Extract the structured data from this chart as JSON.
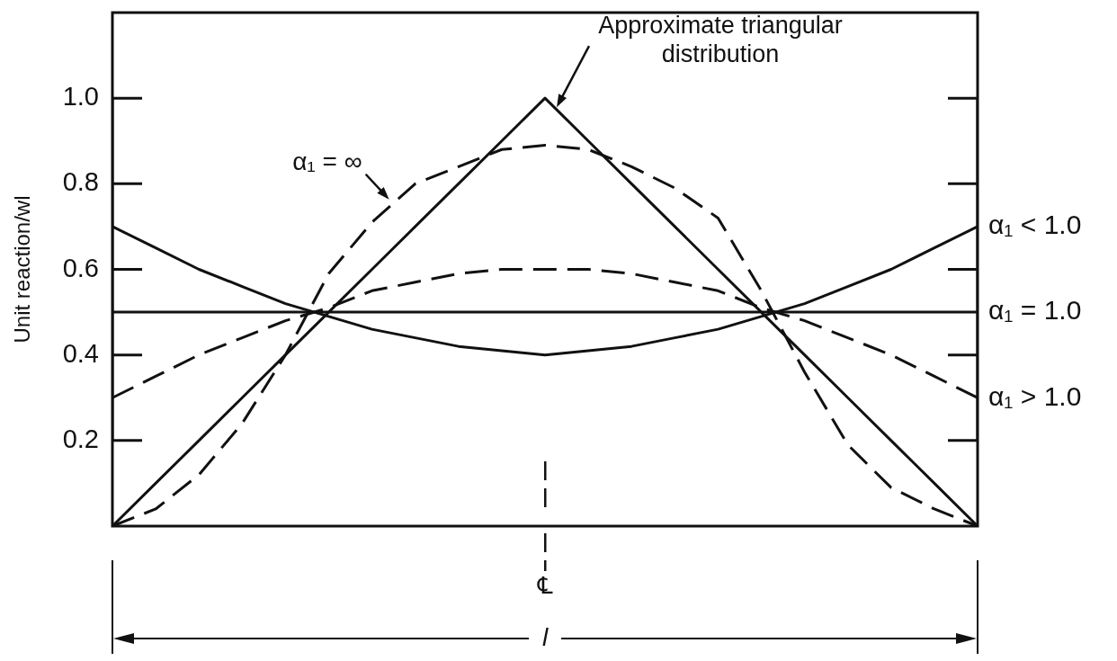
{
  "chart_data": {
    "type": "line",
    "ylabel": "Unit reaction/wl",
    "categories": [
      null,
      null,
      null,
      null,
      null,
      null,
      null,
      null,
      null,
      null,
      null,
      null,
      null,
      null,
      null,
      null,
      null,
      null,
      null,
      null,
      null
    ],
    "series": [
      {
        "name": "Approximate triangular distribution",
        "color": "#111111",
        "line_style": "solid",
        "values": [
          0,
          0.1,
          0.2,
          0.3,
          0.4,
          0.5,
          0.6,
          0.7,
          0.8,
          0.9,
          1,
          0.9,
          0.8,
          0.7,
          0.6,
          0.5,
          0.4,
          0.3,
          0.2,
          0.1,
          0
        ]
      },
      {
        "name": "α₁ = ∞",
        "color": "#111111",
        "line_style": "dashed",
        "values": [
          0,
          0.04,
          0.12,
          0.24,
          0.4,
          0.59,
          0.71,
          0.8,
          0.84,
          0.88,
          0.89,
          0.88,
          0.84,
          0.79,
          0.72,
          0.55,
          0.36,
          0.19,
          0.09,
          0.04,
          0
        ]
      },
      {
        "name": "α₁ < 1.0",
        "color": "#111111",
        "line_style": "solid",
        "values": [
          0.7,
          0.65,
          0.6,
          0.56,
          0.52,
          0.49,
          0.46,
          0.44,
          0.42,
          0.41,
          0.4,
          0.41,
          0.42,
          0.44,
          0.46,
          0.49,
          0.52,
          0.56,
          0.6,
          0.65,
          0.7
        ]
      },
      {
        "name": "α₁ = 1.0",
        "color": "#111111",
        "line_style": "solid",
        "values": [
          0.5,
          0.5,
          0.5,
          0.5,
          0.5,
          0.5,
          0.5,
          0.5,
          0.5,
          0.5,
          0.5,
          0.5,
          0.5,
          0.5,
          0.5,
          0.5,
          0.5,
          0.5,
          0.5,
          0.5,
          0.5
        ]
      },
      {
        "name": "α₁ > 1.0",
        "color": "#111111",
        "line_style": "dashed",
        "values": [
          0.3,
          0.35,
          0.4,
          0.44,
          0.48,
          0.51,
          0.55,
          0.57,
          0.59,
          0.6,
          0.6,
          0.6,
          0.59,
          0.57,
          0.55,
          0.51,
          0.48,
          0.44,
          0.4,
          0.35,
          0.3
        ]
      }
    ],
    "ylim": [
      0,
      1.2
    ],
    "yticks": [
      0.2,
      0.4,
      0.6,
      0.8,
      {
        "value": 1,
        "label": "1.0"
      }
    ],
    "marker": "none",
    "annotations": [
      "℄",
      "l"
    ]
  }
}
